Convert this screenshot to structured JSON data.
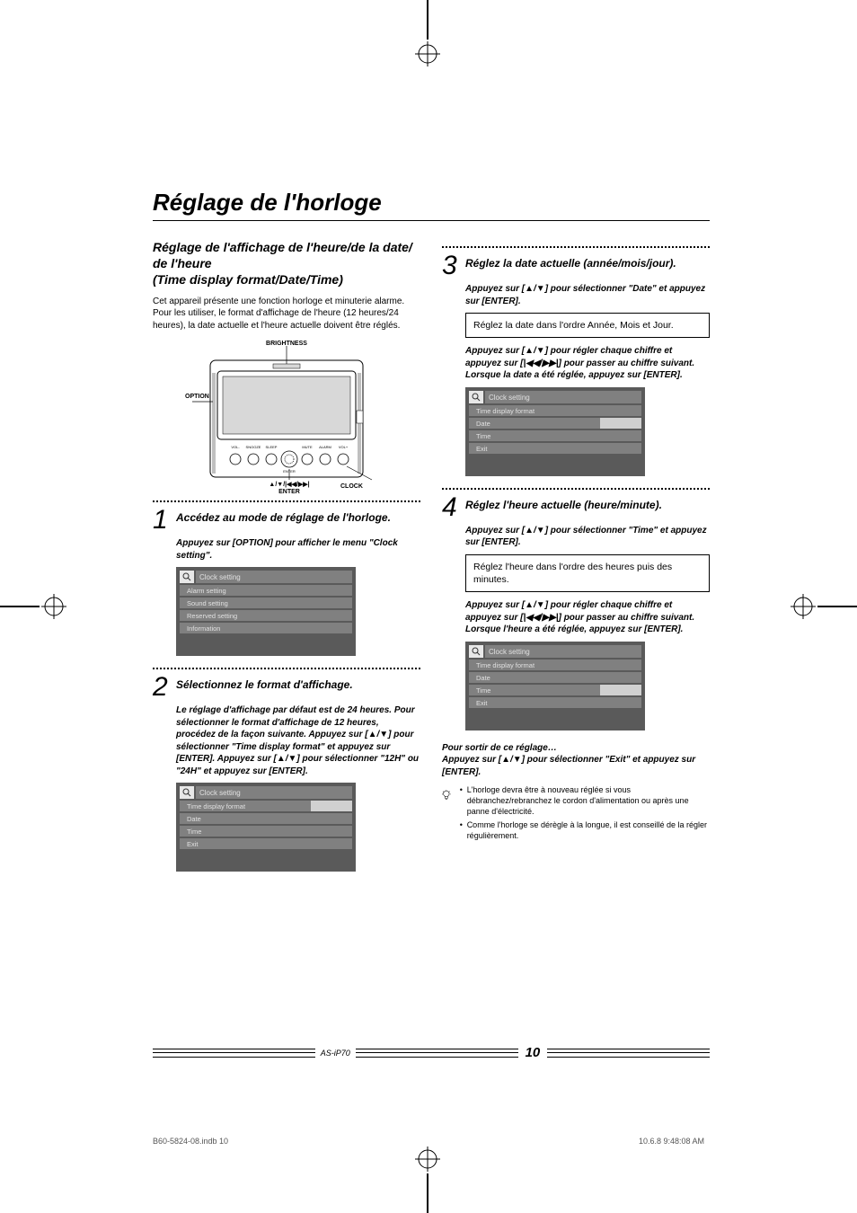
{
  "page": {
    "title": "Réglage de l'horloge",
    "model": "AS-iP70",
    "page_number": "10",
    "indb_left": "B60-5824-08.indb   10",
    "indb_right": "10.6.8   9:48:08 AM"
  },
  "section": {
    "heading_line1": "Réglage de l'affichage de l'heure/de la date/ de l'heure",
    "heading_line2": "(Time display format/Date/Time)",
    "intro": "Cet appareil présente une fonction horloge et minuterie alarme. Pour les utiliser, le format d'affichage de l'heure (12 heures/24 heures), la date actuelle et l'heure actuelle doivent être réglés."
  },
  "device_labels": {
    "brightness": "BRIGHTNESS",
    "option": "OPTION",
    "clock": "CLOCK",
    "nav": "▲/▼/|◀◀/▶▶|",
    "enter": "ENTER"
  },
  "steps": [
    {
      "num": "1",
      "head": "Accédez au mode de réglage de l'horloge.",
      "body": "Appuyez sur [OPTION] pour afficher le menu \"Clock setting\".",
      "screen": {
        "rows": [
          "Clock setting",
          "Alarm setting",
          "Sound setting",
          "Reserved setting",
          "Information"
        ],
        "highlight": -1
      }
    },
    {
      "num": "2",
      "head": "Sélectionnez le format d'affichage.",
      "body": "Le réglage d'affichage par défaut est de 24 heures. Pour sélectionner le format d'affichage de 12 heures, procédez de la façon suivante.\nAppuyez sur [▲/▼] pour sélectionner \"Time display format\" et appuyez sur [ENTER]. Appuyez sur [▲/▼] pour sélectionner \"12H\" ou \"24H\" et appuyez sur [ENTER].",
      "screen": {
        "rows": [
          "Clock setting",
          "Time display format",
          "Date",
          "Time",
          "Exit"
        ],
        "highlight": 1
      }
    },
    {
      "num": "3",
      "head": "Réglez la date actuelle (année/mois/jour).",
      "body1": "Appuyez sur [▲/▼] pour sélectionner \"Date\" et appuyez sur [ENTER].",
      "note": "Réglez la date dans l'ordre Année, Mois et Jour.",
      "body2": "Appuyez sur [▲/▼] pour régler chaque chiffre et appuyez sur [|◀◀/▶▶|] pour passer au chiffre suivant.\nLorsque la date a été réglée, appuyez sur [ENTER].",
      "screen": {
        "rows": [
          "Clock setting",
          "Time display format",
          "Date",
          "Time",
          "Exit"
        ],
        "highlight": 2
      }
    },
    {
      "num": "4",
      "head": "Réglez l'heure actuelle (heure/minute).",
      "body1": "Appuyez sur [▲/▼] pour sélectionner \"Time\" et appuyez sur [ENTER].",
      "note": "Réglez l'heure dans l'ordre des heures puis des minutes.",
      "body2": "Appuyez sur [▲/▼] pour régler chaque chiffre et appuyez sur [|◀◀/▶▶|] pour passer au chiffre suivant.\nLorsque l'heure a été réglée, appuyez sur [ENTER].",
      "screen": {
        "rows": [
          "Clock setting",
          "Time display format",
          "Date",
          "Time",
          "Exit"
        ],
        "highlight": 3
      }
    }
  ],
  "exit": {
    "head": "Pour sortir de ce réglage…",
    "body": "Appuyez sur [▲/▼] pour sélectionner \"Exit\" et appuyez sur [ENTER]."
  },
  "tips": [
    "L'horloge devra être à nouveau réglée si vous débranchez/rebranchez le cordon d'alimentation ou après une panne d'électricité.",
    "Comme l'horloge se dérègle à la longue, il est conseillé de la régler régulièrement."
  ],
  "colors": {
    "screen_bg": "#5a5a5a",
    "screen_row": "#808080",
    "screen_header": "#e8e8e8",
    "screen_hilite": "#d0d0d0",
    "text_on_dark": "#e0e0e0"
  }
}
